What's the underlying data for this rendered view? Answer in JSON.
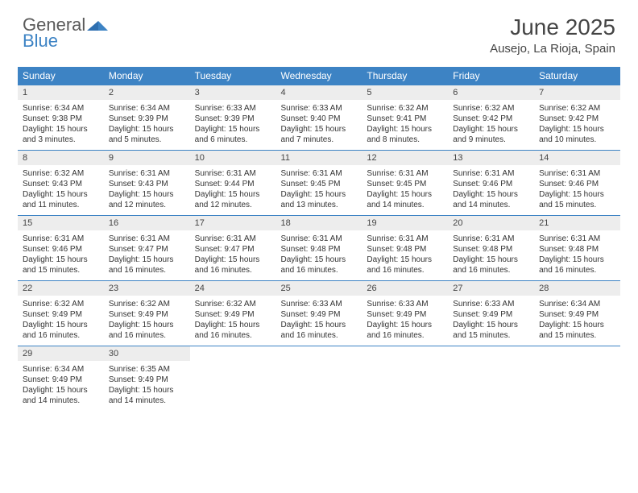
{
  "logo": {
    "general": "General",
    "blue": "Blue"
  },
  "title": "June 2025",
  "location": "Ausejo, La Rioja, Spain",
  "colors": {
    "header_bg": "#3d83c4",
    "header_text": "#ffffff",
    "daynum_bg": "#ededed",
    "border": "#3d83c4",
    "body_text": "#333333",
    "logo_gray": "#5a5a5a",
    "logo_blue": "#3d83c4"
  },
  "weekdays": [
    "Sunday",
    "Monday",
    "Tuesday",
    "Wednesday",
    "Thursday",
    "Friday",
    "Saturday"
  ],
  "weeks": [
    [
      {
        "d": "1",
        "sr": "Sunrise: 6:34 AM",
        "ss": "Sunset: 9:38 PM",
        "dl1": "Daylight: 15 hours",
        "dl2": "and 3 minutes."
      },
      {
        "d": "2",
        "sr": "Sunrise: 6:34 AM",
        "ss": "Sunset: 9:39 PM",
        "dl1": "Daylight: 15 hours",
        "dl2": "and 5 minutes."
      },
      {
        "d": "3",
        "sr": "Sunrise: 6:33 AM",
        "ss": "Sunset: 9:39 PM",
        "dl1": "Daylight: 15 hours",
        "dl2": "and 6 minutes."
      },
      {
        "d": "4",
        "sr": "Sunrise: 6:33 AM",
        "ss": "Sunset: 9:40 PM",
        "dl1": "Daylight: 15 hours",
        "dl2": "and 7 minutes."
      },
      {
        "d": "5",
        "sr": "Sunrise: 6:32 AM",
        "ss": "Sunset: 9:41 PM",
        "dl1": "Daylight: 15 hours",
        "dl2": "and 8 minutes."
      },
      {
        "d": "6",
        "sr": "Sunrise: 6:32 AM",
        "ss": "Sunset: 9:42 PM",
        "dl1": "Daylight: 15 hours",
        "dl2": "and 9 minutes."
      },
      {
        "d": "7",
        "sr": "Sunrise: 6:32 AM",
        "ss": "Sunset: 9:42 PM",
        "dl1": "Daylight: 15 hours",
        "dl2": "and 10 minutes."
      }
    ],
    [
      {
        "d": "8",
        "sr": "Sunrise: 6:32 AM",
        "ss": "Sunset: 9:43 PM",
        "dl1": "Daylight: 15 hours",
        "dl2": "and 11 minutes."
      },
      {
        "d": "9",
        "sr": "Sunrise: 6:31 AM",
        "ss": "Sunset: 9:43 PM",
        "dl1": "Daylight: 15 hours",
        "dl2": "and 12 minutes."
      },
      {
        "d": "10",
        "sr": "Sunrise: 6:31 AM",
        "ss": "Sunset: 9:44 PM",
        "dl1": "Daylight: 15 hours",
        "dl2": "and 12 minutes."
      },
      {
        "d": "11",
        "sr": "Sunrise: 6:31 AM",
        "ss": "Sunset: 9:45 PM",
        "dl1": "Daylight: 15 hours",
        "dl2": "and 13 minutes."
      },
      {
        "d": "12",
        "sr": "Sunrise: 6:31 AM",
        "ss": "Sunset: 9:45 PM",
        "dl1": "Daylight: 15 hours",
        "dl2": "and 14 minutes."
      },
      {
        "d": "13",
        "sr": "Sunrise: 6:31 AM",
        "ss": "Sunset: 9:46 PM",
        "dl1": "Daylight: 15 hours",
        "dl2": "and 14 minutes."
      },
      {
        "d": "14",
        "sr": "Sunrise: 6:31 AM",
        "ss": "Sunset: 9:46 PM",
        "dl1": "Daylight: 15 hours",
        "dl2": "and 15 minutes."
      }
    ],
    [
      {
        "d": "15",
        "sr": "Sunrise: 6:31 AM",
        "ss": "Sunset: 9:46 PM",
        "dl1": "Daylight: 15 hours",
        "dl2": "and 15 minutes."
      },
      {
        "d": "16",
        "sr": "Sunrise: 6:31 AM",
        "ss": "Sunset: 9:47 PM",
        "dl1": "Daylight: 15 hours",
        "dl2": "and 16 minutes."
      },
      {
        "d": "17",
        "sr": "Sunrise: 6:31 AM",
        "ss": "Sunset: 9:47 PM",
        "dl1": "Daylight: 15 hours",
        "dl2": "and 16 minutes."
      },
      {
        "d": "18",
        "sr": "Sunrise: 6:31 AM",
        "ss": "Sunset: 9:48 PM",
        "dl1": "Daylight: 15 hours",
        "dl2": "and 16 minutes."
      },
      {
        "d": "19",
        "sr": "Sunrise: 6:31 AM",
        "ss": "Sunset: 9:48 PM",
        "dl1": "Daylight: 15 hours",
        "dl2": "and 16 minutes."
      },
      {
        "d": "20",
        "sr": "Sunrise: 6:31 AM",
        "ss": "Sunset: 9:48 PM",
        "dl1": "Daylight: 15 hours",
        "dl2": "and 16 minutes."
      },
      {
        "d": "21",
        "sr": "Sunrise: 6:31 AM",
        "ss": "Sunset: 9:48 PM",
        "dl1": "Daylight: 15 hours",
        "dl2": "and 16 minutes."
      }
    ],
    [
      {
        "d": "22",
        "sr": "Sunrise: 6:32 AM",
        "ss": "Sunset: 9:49 PM",
        "dl1": "Daylight: 15 hours",
        "dl2": "and 16 minutes."
      },
      {
        "d": "23",
        "sr": "Sunrise: 6:32 AM",
        "ss": "Sunset: 9:49 PM",
        "dl1": "Daylight: 15 hours",
        "dl2": "and 16 minutes."
      },
      {
        "d": "24",
        "sr": "Sunrise: 6:32 AM",
        "ss": "Sunset: 9:49 PM",
        "dl1": "Daylight: 15 hours",
        "dl2": "and 16 minutes."
      },
      {
        "d": "25",
        "sr": "Sunrise: 6:33 AM",
        "ss": "Sunset: 9:49 PM",
        "dl1": "Daylight: 15 hours",
        "dl2": "and 16 minutes."
      },
      {
        "d": "26",
        "sr": "Sunrise: 6:33 AM",
        "ss": "Sunset: 9:49 PM",
        "dl1": "Daylight: 15 hours",
        "dl2": "and 16 minutes."
      },
      {
        "d": "27",
        "sr": "Sunrise: 6:33 AM",
        "ss": "Sunset: 9:49 PM",
        "dl1": "Daylight: 15 hours",
        "dl2": "and 15 minutes."
      },
      {
        "d": "28",
        "sr": "Sunrise: 6:34 AM",
        "ss": "Sunset: 9:49 PM",
        "dl1": "Daylight: 15 hours",
        "dl2": "and 15 minutes."
      }
    ],
    [
      {
        "d": "29",
        "sr": "Sunrise: 6:34 AM",
        "ss": "Sunset: 9:49 PM",
        "dl1": "Daylight: 15 hours",
        "dl2": "and 14 minutes."
      },
      {
        "d": "30",
        "sr": "Sunrise: 6:35 AM",
        "ss": "Sunset: 9:49 PM",
        "dl1": "Daylight: 15 hours",
        "dl2": "and 14 minutes."
      },
      null,
      null,
      null,
      null,
      null
    ]
  ]
}
